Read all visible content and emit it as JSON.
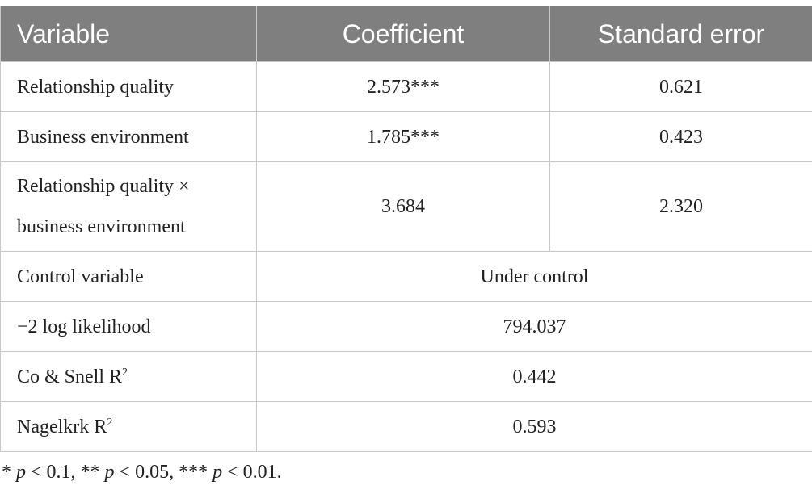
{
  "table": {
    "header": [
      "Variable",
      "Coefficient",
      "Standard error"
    ],
    "rows": [
      [
        "Relationship quality",
        "2.573***",
        "0.621"
      ],
      [
        "Business environment",
        "1.785***",
        "0.423"
      ],
      [
        "Relationship quality × business environment",
        "3.684",
        "2.320"
      ],
      [
        "Control variable",
        "Under control"
      ],
      [
        "−2 log likelihood",
        "794.037"
      ],
      [
        {
          "text": "Co & Snell R",
          "sup": "2"
        },
        "0.442"
      ],
      [
        {
          "text": "Nagelkrk R",
          "sup": "2"
        },
        "0.593"
      ]
    ]
  },
  "footnote": [
    {
      "text": "* "
    },
    {
      "text": "p",
      "italic": true
    },
    {
      "text": " < 0.1, ** "
    },
    {
      "text": "p",
      "italic": true
    },
    {
      "text": " < 0.05, *** "
    },
    {
      "text": "p",
      "italic": true
    },
    {
      "text": " < 0.01."
    }
  ]
}
